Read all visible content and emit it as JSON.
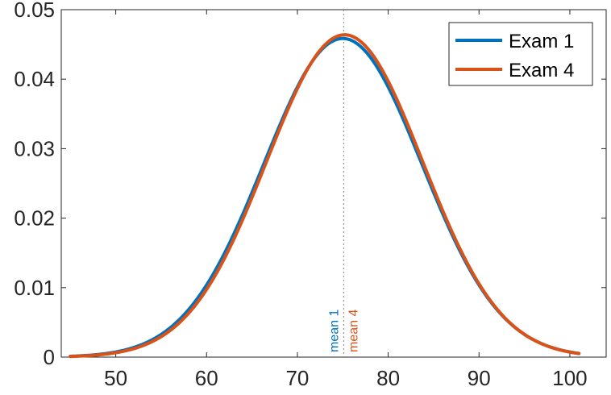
{
  "chart_data": {
    "type": "line",
    "title": "",
    "xlabel": "",
    "ylabel": "",
    "xlim": [
      44,
      104
    ],
    "ylim": [
      0,
      0.05
    ],
    "x_ticks": [
      50,
      60,
      70,
      80,
      90,
      100
    ],
    "y_ticks": [
      0,
      0.01,
      0.02,
      0.03,
      0.04,
      0.05
    ],
    "x_tick_labels": [
      "50",
      "60",
      "70",
      "80",
      "90",
      "100"
    ],
    "y_tick_labels": [
      "0",
      "0.01",
      "0.02",
      "0.03",
      "0.04",
      "0.05"
    ],
    "grid": false,
    "legend_position": "top-right",
    "series": [
      {
        "name": "Exam 1",
        "color": "#0072BD",
        "distribution": "normal",
        "mean": 75,
        "std": 8.7,
        "x_range": [
          45,
          101
        ]
      },
      {
        "name": "Exam 4",
        "color": "#D95319",
        "distribution": "normal",
        "mean": 75.2,
        "std": 8.6,
        "x_range": [
          45,
          101
        ]
      }
    ],
    "annotations": [
      {
        "text": "mean 1",
        "x": 75,
        "color": "#0072BD"
      },
      {
        "text": "mean 4",
        "x": 75.2,
        "color": "#D95319"
      }
    ],
    "mean_line": {
      "x": 75.1,
      "style": "dotted",
      "color": "#808080"
    }
  }
}
